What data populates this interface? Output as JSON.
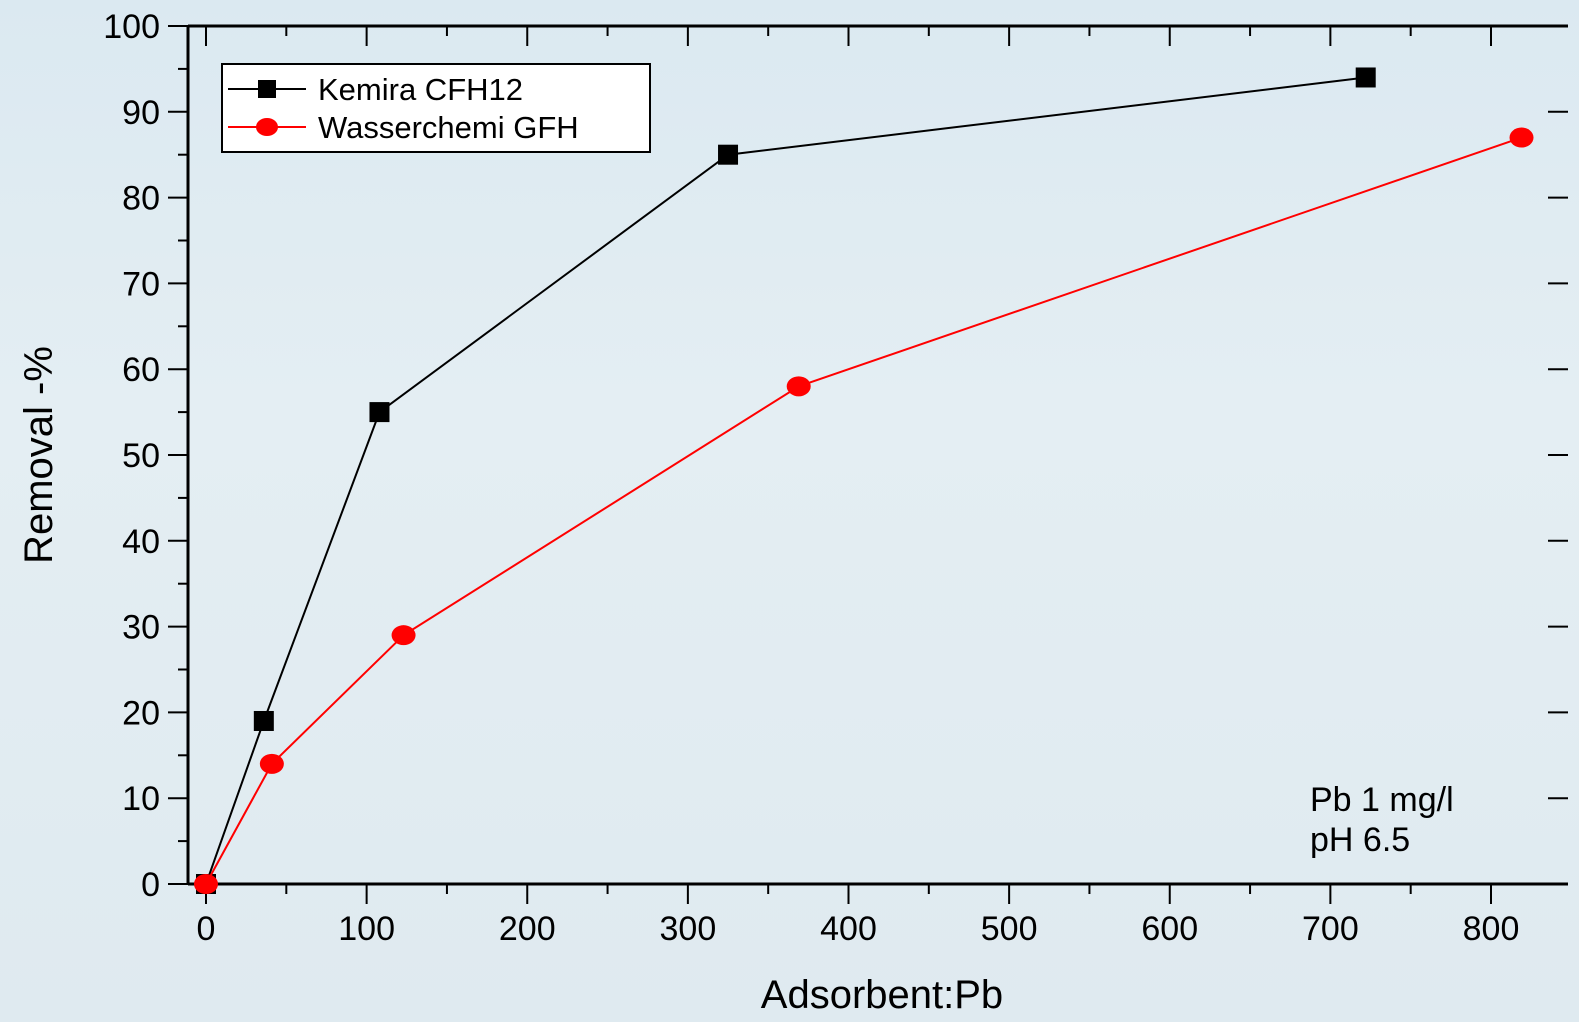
{
  "chart_data": {
    "type": "line",
    "xlabel": "Adsorbent:Pb",
    "ylabel": "Removal -%",
    "xlim": [
      -10,
      850
    ],
    "ylim": [
      0,
      100
    ],
    "xticks": [
      0,
      100,
      200,
      300,
      400,
      500,
      600,
      700,
      800
    ],
    "yticks": [
      0,
      10,
      20,
      30,
      40,
      50,
      60,
      70,
      80,
      90,
      100
    ],
    "grid": false,
    "legend_position": "top-left",
    "series": [
      {
        "name": "Kemira CFH12",
        "color": "#000000",
        "marker": "square",
        "points": [
          [
            0,
            0
          ],
          [
            36,
            19
          ],
          [
            108,
            55
          ],
          [
            325,
            85
          ],
          [
            722,
            94
          ]
        ]
      },
      {
        "name": "Wasserchemi GFH",
        "color": "#ff0000",
        "marker": "circle",
        "points": [
          [
            0,
            0
          ],
          [
            41,
            14
          ],
          [
            123,
            29
          ],
          [
            369,
            58
          ],
          [
            819,
            87
          ]
        ]
      }
    ],
    "annotations": [
      "Pb 1 mg/l",
      "pH 6.5"
    ]
  }
}
